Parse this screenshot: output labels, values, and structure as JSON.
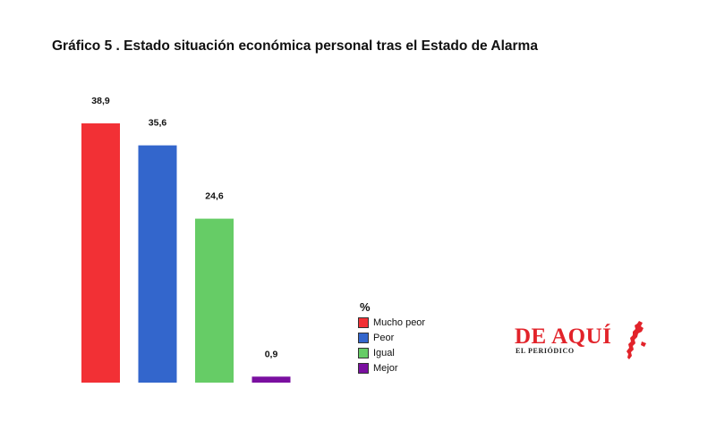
{
  "title": "Gráfico 5 . Estado situación económica personal tras el Estado de Alarma",
  "chart_data": {
    "type": "bar",
    "categories": [
      "Mucho peor",
      "Peor",
      "Igual",
      "Mejor"
    ],
    "values": [
      38.9,
      35.6,
      24.6,
      0.9
    ],
    "value_labels": [
      "38,9",
      "35,6",
      "24,6",
      "0,9"
    ],
    "colors": [
      "#f23035",
      "#3366cc",
      "#66cc66",
      "#7a0fa0"
    ],
    "legend_title": "%",
    "legend_placement": "bottom-center",
    "grid": false,
    "ylim": [
      0,
      38.9
    ]
  },
  "logo": {
    "name": "DE AQUÍ",
    "subtitle": "EL PERIÓDICO"
  }
}
